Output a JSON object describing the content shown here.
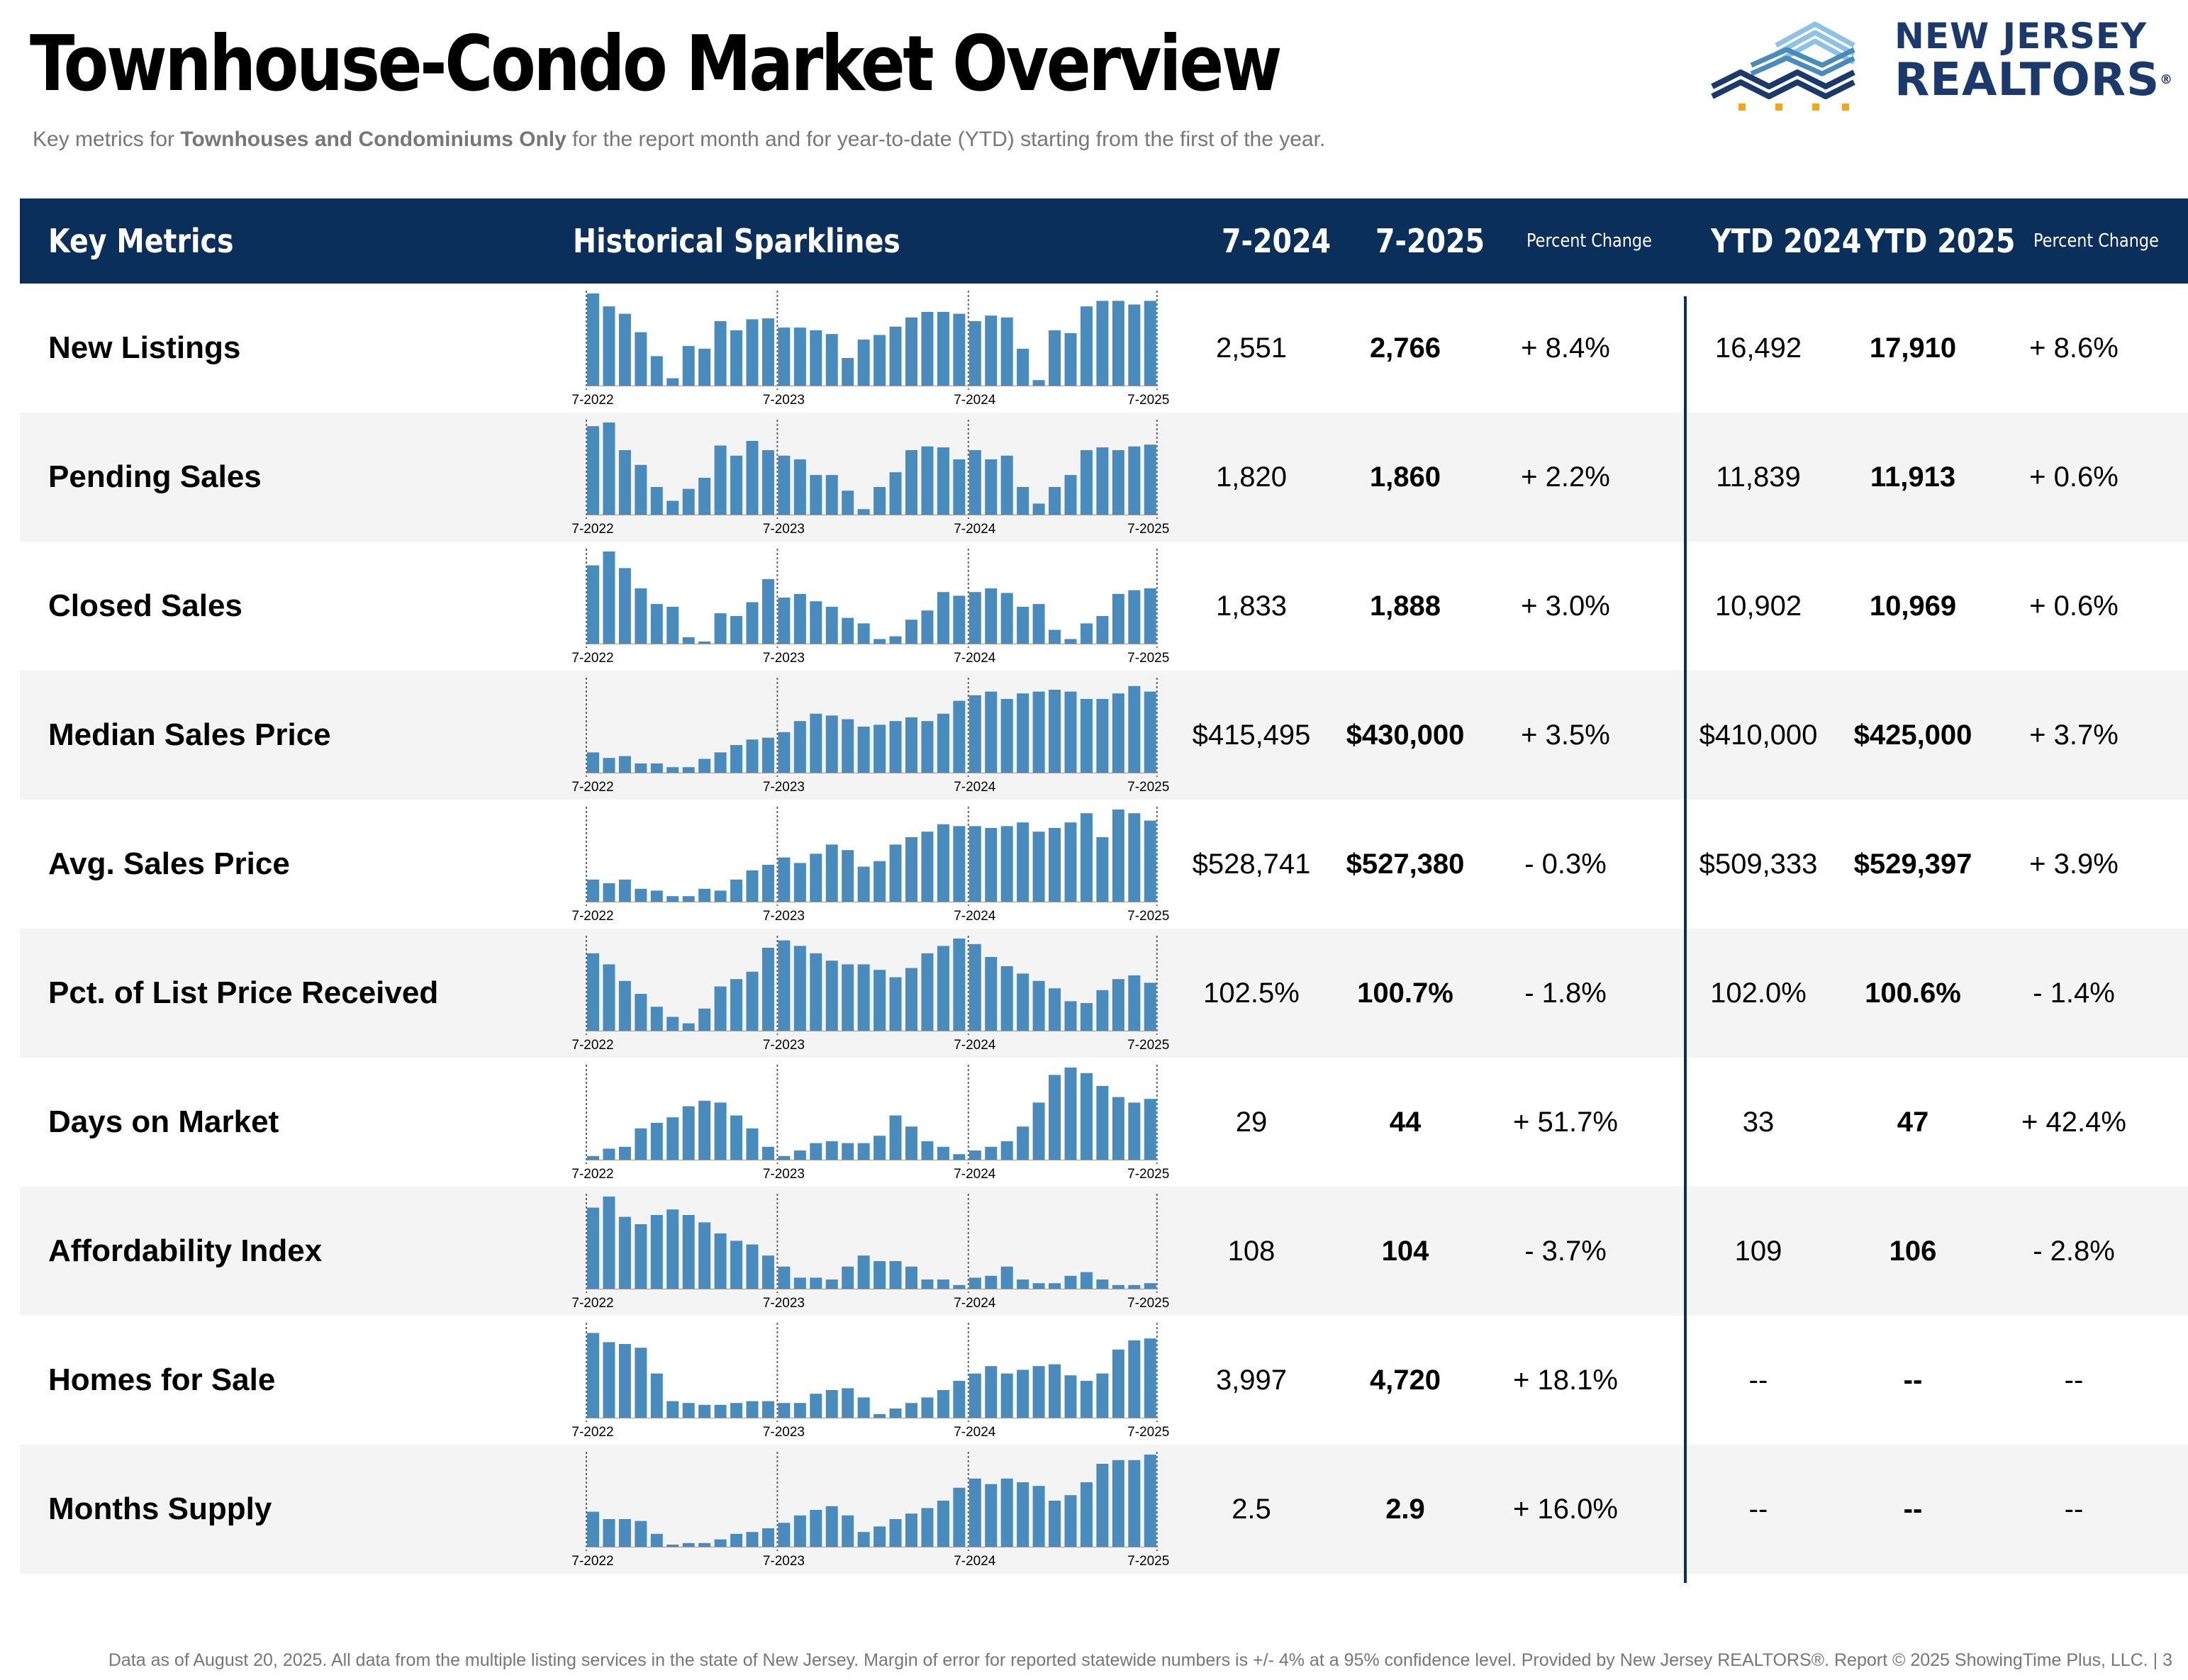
{
  "title": "Townhouse-Condo Market Overview",
  "subtitle": {
    "before": "Key metrics for ",
    "bold": "Townhouses and Condominiums Only",
    "after": " for the report month and for year-to-date (YTD) starting from the first of the year."
  },
  "logo": {
    "line1": "NEW JERSEY",
    "line2": "REALTORS",
    "reg": "®",
    "icon": "building-skyline-icon"
  },
  "header": {
    "key_metrics": "Key Metrics",
    "sparklines": "Historical Sparklines",
    "month_prev": "7-2024",
    "month_curr": "7-2025",
    "pct_change": "Percent Change",
    "ytd_prev": "YTD 2024",
    "ytd_curr": "YTD 2025",
    "ytd_pct_change": "Percent Change"
  },
  "spark_axis_labels": [
    "7-2022",
    "7-2023",
    "7-2024",
    "7-2025"
  ],
  "colors": {
    "bar": "#4a8bbd",
    "header": "#0b2f5b",
    "alt_row": "#f4f4f4"
  },
  "rows": [
    {
      "metric": "New Listings",
      "m_prev": "2,551",
      "m_curr": "2,766",
      "m_pct": "+ 8.4%",
      "y_prev": "16,492",
      "y_curr": "17,910",
      "y_pct": "+ 8.6%",
      "spark": [
        1.0,
        0.86,
        0.78,
        0.58,
        0.32,
        0.08,
        0.43,
        0.4,
        0.7,
        0.6,
        0.72,
        0.73,
        0.63,
        0.63,
        0.6,
        0.56,
        0.3,
        0.5,
        0.55,
        0.64,
        0.74,
        0.8,
        0.8,
        0.78,
        0.7,
        0.76,
        0.74,
        0.4,
        0.06,
        0.6,
        0.57,
        0.86,
        0.92,
        0.92,
        0.88,
        0.92
      ]
    },
    {
      "metric": "Pending Sales",
      "m_prev": "1,820",
      "m_curr": "1,860",
      "m_pct": "+ 2.2%",
      "y_prev": "11,839",
      "y_curr": "11,913",
      "y_pct": "+ 0.6%",
      "spark": [
        0.96,
        1.0,
        0.7,
        0.54,
        0.3,
        0.15,
        0.28,
        0.4,
        0.75,
        0.64,
        0.8,
        0.7,
        0.64,
        0.6,
        0.43,
        0.43,
        0.26,
        0.06,
        0.3,
        0.46,
        0.7,
        0.74,
        0.73,
        0.6,
        0.7,
        0.6,
        0.64,
        0.3,
        0.12,
        0.3,
        0.43,
        0.7,
        0.73,
        0.7,
        0.74,
        0.76
      ]
    },
    {
      "metric": "Closed Sales",
      "m_prev": "1,833",
      "m_curr": "1,888",
      "m_pct": "+ 3.0%",
      "y_prev": "10,902",
      "y_curr": "10,969",
      "y_pct": "+ 0.6%",
      "spark": [
        0.85,
        1.0,
        0.82,
        0.6,
        0.43,
        0.4,
        0.07,
        0.02,
        0.33,
        0.3,
        0.45,
        0.7,
        0.5,
        0.54,
        0.46,
        0.4,
        0.28,
        0.22,
        0.05,
        0.08,
        0.26,
        0.36,
        0.56,
        0.52,
        0.56,
        0.6,
        0.55,
        0.4,
        0.43,
        0.15,
        0.05,
        0.22,
        0.3,
        0.54,
        0.58,
        0.6
      ]
    },
    {
      "metric": "Median Sales Price",
      "m_prev": "$415,495",
      "m_curr": "$430,000",
      "m_pct": "+ 3.5%",
      "y_prev": "$410,000",
      "y_curr": "$425,000",
      "y_pct": "+ 3.7%",
      "spark": [
        0.22,
        0.16,
        0.18,
        0.1,
        0.1,
        0.06,
        0.06,
        0.15,
        0.22,
        0.3,
        0.36,
        0.38,
        0.44,
        0.56,
        0.64,
        0.62,
        0.58,
        0.5,
        0.52,
        0.56,
        0.6,
        0.56,
        0.64,
        0.78,
        0.84,
        0.88,
        0.8,
        0.86,
        0.88,
        0.9,
        0.88,
        0.8,
        0.8,
        0.86,
        0.94,
        0.88
      ]
    },
    {
      "metric": "Avg. Sales Price",
      "m_prev": "$528,741",
      "m_curr": "$527,380",
      "m_pct": "- 0.3%",
      "y_prev": "$509,333",
      "y_curr": "$529,397",
      "y_pct": "+ 3.9%",
      "spark": [
        0.24,
        0.2,
        0.24,
        0.14,
        0.12,
        0.06,
        0.06,
        0.14,
        0.12,
        0.24,
        0.34,
        0.4,
        0.48,
        0.42,
        0.52,
        0.62,
        0.56,
        0.38,
        0.44,
        0.62,
        0.7,
        0.76,
        0.84,
        0.82,
        0.82,
        0.8,
        0.82,
        0.86,
        0.76,
        0.8,
        0.86,
        0.96,
        0.7,
        1.0,
        0.96,
        0.88
      ]
    },
    {
      "metric": "Pct. of List Price Received",
      "m_prev": "102.5%",
      "m_curr": "100.7%",
      "m_pct": "- 1.8%",
      "y_prev": "102.0%",
      "y_curr": "100.6%",
      "y_pct": "- 1.4%",
      "spark": [
        0.84,
        0.72,
        0.54,
        0.4,
        0.26,
        0.15,
        0.08,
        0.24,
        0.48,
        0.56,
        0.64,
        0.9,
        0.98,
        0.92,
        0.84,
        0.76,
        0.72,
        0.72,
        0.66,
        0.58,
        0.68,
        0.84,
        0.92,
        1.0,
        0.94,
        0.8,
        0.7,
        0.62,
        0.54,
        0.46,
        0.32,
        0.3,
        0.44,
        0.56,
        0.6,
        0.52
      ]
    },
    {
      "metric": "Days on Market",
      "m_prev": "29",
      "m_curr": "44",
      "m_pct": "+ 51.7%",
      "y_prev": "33",
      "y_curr": "47",
      "y_pct": "+ 42.4%",
      "spark": [
        0.04,
        0.12,
        0.14,
        0.34,
        0.4,
        0.46,
        0.58,
        0.64,
        0.62,
        0.48,
        0.34,
        0.14,
        0.04,
        0.1,
        0.18,
        0.2,
        0.18,
        0.18,
        0.26,
        0.48,
        0.36,
        0.2,
        0.14,
        0.06,
        0.1,
        0.14,
        0.2,
        0.36,
        0.62,
        0.92,
        1.0,
        0.94,
        0.8,
        0.68,
        0.62,
        0.66
      ]
    },
    {
      "metric": "Affordability Index",
      "m_prev": "108",
      "m_curr": "104",
      "m_pct": "- 3.7%",
      "y_prev": "109",
      "y_curr": "106",
      "y_pct": "- 2.8%",
      "spark": [
        0.88,
        1.0,
        0.78,
        0.7,
        0.8,
        0.86,
        0.8,
        0.72,
        0.6,
        0.52,
        0.48,
        0.36,
        0.24,
        0.12,
        0.12,
        0.1,
        0.24,
        0.36,
        0.3,
        0.3,
        0.24,
        0.1,
        0.1,
        0.04,
        0.12,
        0.14,
        0.24,
        0.1,
        0.06,
        0.06,
        0.14,
        0.18,
        0.1,
        0.04,
        0.04,
        0.06
      ]
    },
    {
      "metric": "Homes for Sale",
      "m_prev": "3,997",
      "m_curr": "4,720",
      "m_pct": "+ 18.1%",
      "y_prev": "--",
      "y_curr": "--",
      "y_pct": "--",
      "spark": [
        0.92,
        0.82,
        0.8,
        0.76,
        0.48,
        0.18,
        0.16,
        0.14,
        0.14,
        0.16,
        0.18,
        0.18,
        0.16,
        0.16,
        0.26,
        0.3,
        0.32,
        0.22,
        0.04,
        0.1,
        0.16,
        0.22,
        0.3,
        0.4,
        0.48,
        0.56,
        0.48,
        0.52,
        0.56,
        0.58,
        0.46,
        0.4,
        0.48,
        0.74,
        0.84,
        0.86
      ]
    },
    {
      "metric": "Months Supply",
      "m_prev": "2.5",
      "m_curr": "2.9",
      "m_pct": "+ 16.0%",
      "y_prev": "--",
      "y_curr": "--",
      "y_pct": "--",
      "spark": [
        0.38,
        0.3,
        0.3,
        0.28,
        0.14,
        0.02,
        0.04,
        0.04,
        0.08,
        0.14,
        0.16,
        0.2,
        0.26,
        0.34,
        0.4,
        0.44,
        0.34,
        0.16,
        0.22,
        0.3,
        0.36,
        0.42,
        0.5,
        0.64,
        0.74,
        0.68,
        0.74,
        0.7,
        0.66,
        0.5,
        0.56,
        0.7,
        0.9,
        0.94,
        0.94,
        1.0
      ]
    }
  ],
  "footer": "Data as of August 20, 2025. All data from the multiple listing services in the state of New Jersey. Margin of error for reported statewide numbers is +/- 4% at a 95% confidence level. Provided by New Jersey REALTORS®. Report © 2025 ShowingTime Plus, LLC.  |  3"
}
